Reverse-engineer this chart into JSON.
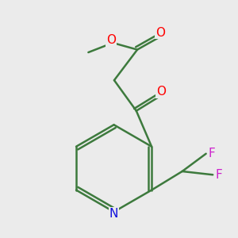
{
  "background_color": "#ebebeb",
  "bond_color": "#3d7a3d",
  "atom_colors": {
    "O": "#ff0000",
    "N": "#1010dd",
    "F": "#cc22cc",
    "C": "#3d7a3d"
  },
  "bond_width": 1.8,
  "figsize": [
    3.0,
    3.0
  ],
  "dpi": 100
}
